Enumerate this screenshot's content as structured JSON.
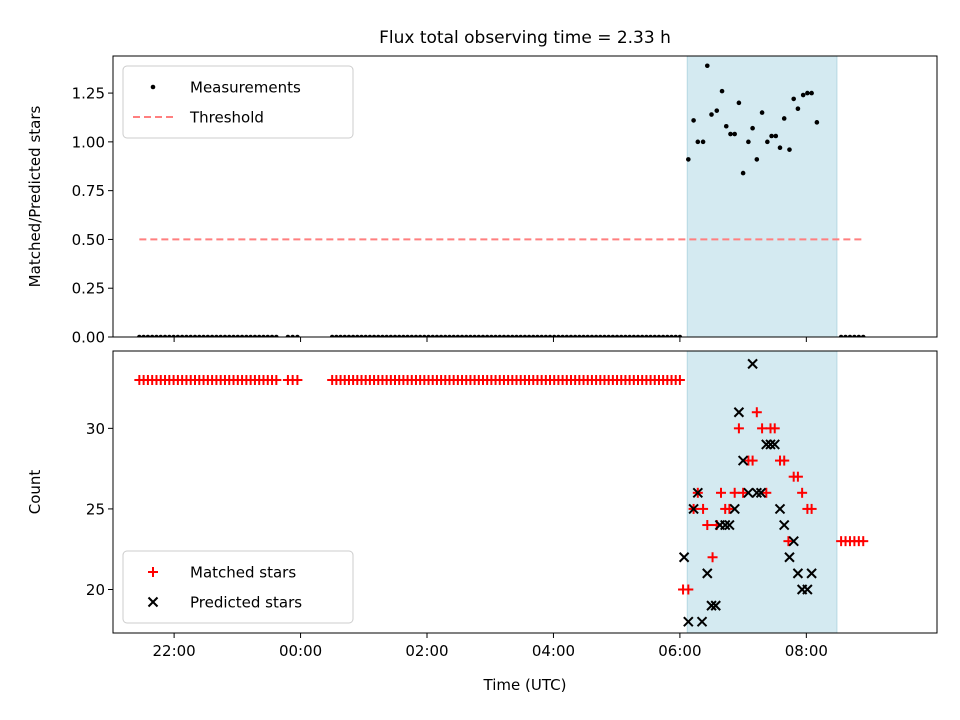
{
  "title": "Flux total observing time = 2.33 h",
  "chart_data": [
    {
      "type": "scatter",
      "ylabel": "Matched/Predicted stars",
      "xlabel": "",
      "ylim": [
        0,
        1.44
      ],
      "yticks": [
        0.0,
        0.25,
        0.5,
        0.75,
        1.0,
        1.25
      ],
      "ytick_labels": [
        "0.00",
        "0.25",
        "0.50",
        "0.75",
        "1.00",
        "1.25"
      ],
      "xlim": [
        "21:02",
        "10:04"
      ],
      "xticks": [
        "22:00",
        "00:00",
        "02:00",
        "04:00",
        "06:00",
        "08:00"
      ],
      "xticks_labeled": false,
      "grid": false,
      "legend_position": "top-left",
      "shaded_span": {
        "start": "06:07",
        "end": "08:29",
        "color": "#d4eaf1"
      },
      "threshold": {
        "name": "Threshold",
        "y": 0.5,
        "x_start": "21:27",
        "x_end": "08:54",
        "color": "#ff7f7f",
        "style": "dashed"
      },
      "series": [
        {
          "name": "Measurements",
          "color": "#000000",
          "marker": "dot",
          "zero_groups": [
            {
              "start": "21:27",
              "end": "23:37",
              "count": 33
            },
            {
              "start": "23:48",
              "end": "23:57",
              "count": 3
            },
            {
              "start": "00:30",
              "end": "06:00",
              "count": 84
            },
            {
              "start": "08:33",
              "end": "08:54",
              "count": 6
            }
          ],
          "points": [
            {
              "x": "06:08",
              "y": 0.91
            },
            {
              "x": "06:13",
              "y": 1.11
            },
            {
              "x": "06:17",
              "y": 1.0
            },
            {
              "x": "06:22",
              "y": 1.0
            },
            {
              "x": "06:26",
              "y": 1.39
            },
            {
              "x": "06:30",
              "y": 1.14
            },
            {
              "x": "06:35",
              "y": 1.16
            },
            {
              "x": "06:40",
              "y": 1.26
            },
            {
              "x": "06:44",
              "y": 1.08
            },
            {
              "x": "06:48",
              "y": 1.04
            },
            {
              "x": "06:52",
              "y": 1.04
            },
            {
              "x": "06:56",
              "y": 1.2
            },
            {
              "x": "07:00",
              "y": 0.84
            },
            {
              "x": "07:05",
              "y": 1.0
            },
            {
              "x": "07:09",
              "y": 1.07
            },
            {
              "x": "07:13",
              "y": 0.91
            },
            {
              "x": "07:18",
              "y": 1.15
            },
            {
              "x": "07:23",
              "y": 1.0
            },
            {
              "x": "07:27",
              "y": 1.03
            },
            {
              "x": "07:31",
              "y": 1.03
            },
            {
              "x": "07:35",
              "y": 0.97
            },
            {
              "x": "07:39",
              "y": 1.12
            },
            {
              "x": "07:44",
              "y": 0.96
            },
            {
              "x": "07:48",
              "y": 1.22
            },
            {
              "x": "07:52",
              "y": 1.17
            },
            {
              "x": "07:57",
              "y": 1.24
            },
            {
              "x": "08:01",
              "y": 1.25
            },
            {
              "x": "08:05",
              "y": 1.25
            },
            {
              "x": "08:10",
              "y": 1.1
            }
          ]
        }
      ]
    },
    {
      "type": "scatter",
      "ylabel": "Count",
      "xlabel": "Time (UTC)",
      "ylim": [
        17.3,
        34.8
      ],
      "yticks": [
        20,
        25,
        30
      ],
      "ytick_labels": [
        "20",
        "25",
        "30"
      ],
      "xlim": [
        "21:02",
        "10:04"
      ],
      "xticks": [
        "22:00",
        "00:00",
        "02:00",
        "04:00",
        "06:00",
        "08:00"
      ],
      "xtick_labels": [
        "22:00",
        "00:00",
        "02:00",
        "04:00",
        "06:00",
        "08:00"
      ],
      "grid": false,
      "legend_position": "bottom-left",
      "shaded_span": {
        "start": "06:07",
        "end": "08:29",
        "color": "#d4eaf1"
      },
      "series": [
        {
          "name": "Matched stars",
          "color": "#ff0000",
          "marker": "plus",
          "constant_groups": [
            {
              "start": "21:27",
              "end": "23:37",
              "count": 33,
              "y": 33
            },
            {
              "start": "23:48",
              "end": "23:57",
              "count": 3,
              "y": 33
            },
            {
              "start": "00:30",
              "end": "06:00",
              "count": 84,
              "y": 33
            },
            {
              "start": "08:33",
              "end": "08:54",
              "count": 6,
              "y": 23
            }
          ],
          "points": [
            {
              "x": "06:03",
              "y": 20
            },
            {
              "x": "06:08",
              "y": 20
            },
            {
              "x": "06:13",
              "y": 25
            },
            {
              "x": "06:17",
              "y": 26
            },
            {
              "x": "06:22",
              "y": 25
            },
            {
              "x": "06:26",
              "y": 24
            },
            {
              "x": "06:31",
              "y": 22
            },
            {
              "x": "06:35",
              "y": 24
            },
            {
              "x": "06:39",
              "y": 26
            },
            {
              "x": "06:43",
              "y": 25
            },
            {
              "x": "06:47",
              "y": 25
            },
            {
              "x": "06:52",
              "y": 26
            },
            {
              "x": "06:56",
              "y": 30
            },
            {
              "x": "07:00",
              "y": 26
            },
            {
              "x": "07:05",
              "y": 28
            },
            {
              "x": "07:09",
              "y": 28
            },
            {
              "x": "07:13",
              "y": 31
            },
            {
              "x": "07:18",
              "y": 30
            },
            {
              "x": "07:22",
              "y": 26
            },
            {
              "x": "07:26",
              "y": 30
            },
            {
              "x": "07:30",
              "y": 30
            },
            {
              "x": "07:35",
              "y": 28
            },
            {
              "x": "07:39",
              "y": 28
            },
            {
              "x": "07:43",
              "y": 23
            },
            {
              "x": "07:48",
              "y": 27
            },
            {
              "x": "07:52",
              "y": 27
            },
            {
              "x": "07:56",
              "y": 26
            },
            {
              "x": "08:01",
              "y": 25
            },
            {
              "x": "08:05",
              "y": 25
            }
          ]
        },
        {
          "name": "Predicted stars",
          "color": "#000000",
          "marker": "x",
          "points": [
            {
              "x": "06:04",
              "y": 22
            },
            {
              "x": "06:08",
              "y": 18
            },
            {
              "x": "06:13",
              "y": 25
            },
            {
              "x": "06:17",
              "y": 26
            },
            {
              "x": "06:21",
              "y": 18
            },
            {
              "x": "06:26",
              "y": 21
            },
            {
              "x": "06:30",
              "y": 19
            },
            {
              "x": "06:34",
              "y": 19
            },
            {
              "x": "06:38",
              "y": 24
            },
            {
              "x": "06:43",
              "y": 24
            },
            {
              "x": "06:47",
              "y": 24
            },
            {
              "x": "06:52",
              "y": 25
            },
            {
              "x": "06:56",
              "y": 31
            },
            {
              "x": "07:00",
              "y": 28
            },
            {
              "x": "07:05",
              "y": 26
            },
            {
              "x": "07:09",
              "y": 34
            },
            {
              "x": "07:13",
              "y": 26
            },
            {
              "x": "07:17",
              "y": 26
            },
            {
              "x": "07:22",
              "y": 29
            },
            {
              "x": "07:26",
              "y": 29
            },
            {
              "x": "07:30",
              "y": 29
            },
            {
              "x": "07:35",
              "y": 25
            },
            {
              "x": "07:39",
              "y": 24
            },
            {
              "x": "07:44",
              "y": 22
            },
            {
              "x": "07:48",
              "y": 23
            },
            {
              "x": "07:52",
              "y": 21
            },
            {
              "x": "07:56",
              "y": 20
            },
            {
              "x": "08:01",
              "y": 20
            },
            {
              "x": "08:05",
              "y": 21
            }
          ]
        }
      ]
    }
  ]
}
